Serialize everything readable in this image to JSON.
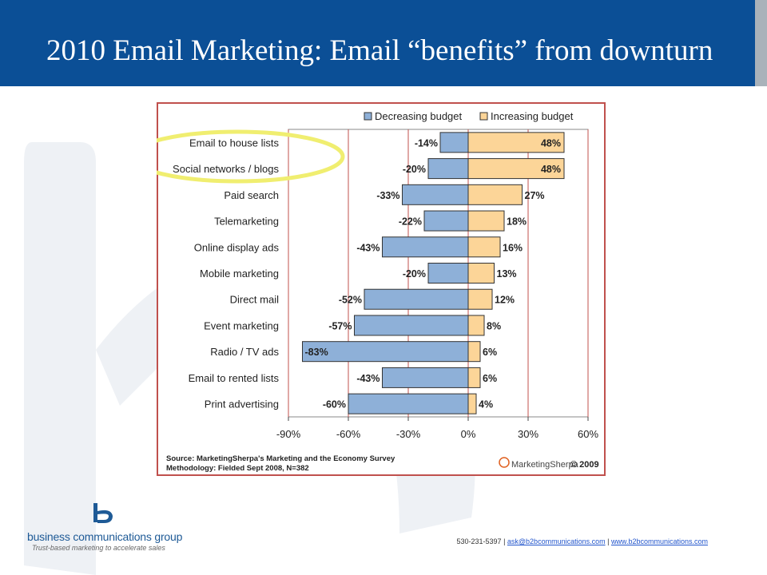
{
  "slide": {
    "title": "2010 Email Marketing: Email “benefits” from downturn"
  },
  "footer": {
    "phone": "530-231-5397",
    "separator": " | ",
    "email": "ask@b2bcommunications.com",
    "website": "www.b2bcommunications.com"
  },
  "logo": {
    "name": "business communications group",
    "tagline": "Trust-based marketing to accelerate sales"
  },
  "colors": {
    "header": "#0b4f96",
    "decreasing": "#8eb0d8",
    "increasing": "#fcd598",
    "highlight": "#f0ee70",
    "gridline": "#c0504d"
  },
  "chart_data": {
    "type": "bar",
    "orientation": "horizontal",
    "categories": [
      "Email to house lists",
      "Social networks / blogs",
      "Paid search",
      "Telemarketing",
      "Online display ads",
      "Mobile marketing",
      "Direct mail",
      "Event marketing",
      "Radio / TV ads",
      "Email to rented lists",
      "Print advertising"
    ],
    "series": [
      {
        "name": "Decreasing budget",
        "values": [
          -14,
          -20,
          -33,
          -22,
          -43,
          -20,
          -52,
          -57,
          -83,
          -43,
          -60
        ]
      },
      {
        "name": "Increasing budget",
        "values": [
          48,
          48,
          27,
          18,
          16,
          13,
          12,
          8,
          6,
          6,
          4
        ]
      }
    ],
    "value_labels_decreasing": [
      "-14%",
      "-20%",
      "-33%",
      "-22%",
      "-43%",
      "-20%",
      "-52%",
      "-57%",
      "-83%",
      "-43%",
      "-60%"
    ],
    "value_labels_increasing": [
      "48%",
      "48%",
      "27%",
      "18%",
      "16%",
      "13%",
      "12%",
      "8%",
      "6%",
      "6%",
      "4%"
    ],
    "xlim": [
      -90,
      60
    ],
    "xticks": [
      -90,
      -60,
      -30,
      0,
      30,
      60
    ],
    "xtick_labels": [
      "-90%",
      "-60%",
      "-30%",
      "0%",
      "30%",
      "60%"
    ],
    "gridlines": "vertical",
    "legend_position": "top",
    "highlighted_categories": [
      "Email to house lists",
      "Social networks / blogs"
    ],
    "source_line1": "Source: MarketingSherpa's Marketing and the Economy Survey",
    "source_line2": "Methodology: Fielded Sept 2008, N=382",
    "brand": "MarketingSherpa",
    "copyright": "© 2009"
  }
}
